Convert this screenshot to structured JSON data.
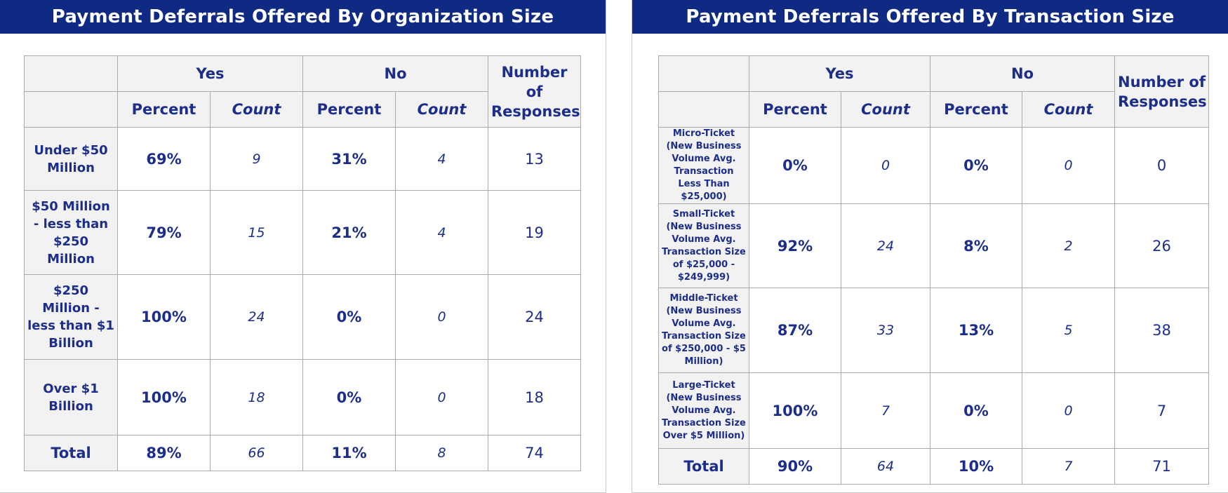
{
  "left": {
    "title": "Payment Deferrals Offered By Organization Size",
    "headers": {
      "yes": "Yes",
      "no": "No",
      "responses": "Number of Responses",
      "percent": "Percent",
      "count": "Count"
    },
    "rows": [
      {
        "label": "Under $50 Million",
        "yes_pct": "69%",
        "yes_cnt": "9",
        "no_pct": "31%",
        "no_cnt": "4",
        "responses": "13"
      },
      {
        "label": "$50 Million - less than $250 Million",
        "yes_pct": "79%",
        "yes_cnt": "15",
        "no_pct": "21%",
        "no_cnt": "4",
        "responses": "19"
      },
      {
        "label": "$250 Million - less than $1 Billion",
        "yes_pct": "100%",
        "yes_cnt": "24",
        "no_pct": "0%",
        "no_cnt": "0",
        "responses": "24"
      },
      {
        "label": "Over $1 Billion",
        "yes_pct": "100%",
        "yes_cnt": "18",
        "no_pct": "0%",
        "no_cnt": "0",
        "responses": "18"
      },
      {
        "label": "Total",
        "yes_pct": "89%",
        "yes_cnt": "66",
        "no_pct": "11%",
        "no_cnt": "8",
        "responses": "74"
      }
    ]
  },
  "right": {
    "title": "Payment Deferrals Offered By Transaction Size",
    "headers": {
      "yes": "Yes",
      "no": "No",
      "responses": "Number of Responses",
      "percent": "Percent",
      "count": "Count"
    },
    "rows": [
      {
        "label": "Micro-Ticket (New Business Volume Avg. Transaction Less Than $25,000)",
        "yes_pct": "0%",
        "yes_cnt": "0",
        "no_pct": "0%",
        "no_cnt": "0",
        "responses": "0"
      },
      {
        "label": "Small-Ticket (New Business Volume Avg. Transaction Size of $25,000 - $249,999)",
        "yes_pct": "92%",
        "yes_cnt": "24",
        "no_pct": "8%",
        "no_cnt": "2",
        "responses": "26"
      },
      {
        "label": "Middle-Ticket (New Business Volume Avg. Transaction Size of $250,000 - $5 Million)",
        "yes_pct": "87%",
        "yes_cnt": "33",
        "no_pct": "13%",
        "no_cnt": "5",
        "responses": "38"
      },
      {
        "label": "Large-Ticket (New Business Volume Avg. Transaction Size Over $5 Million)",
        "yes_pct": "100%",
        "yes_cnt": "7",
        "no_pct": "0%",
        "no_cnt": "0",
        "responses": "7"
      },
      {
        "label": "Total",
        "yes_pct": "90%",
        "yes_cnt": "64",
        "no_pct": "10%",
        "no_cnt": "7",
        "responses": "71"
      }
    ]
  }
}
